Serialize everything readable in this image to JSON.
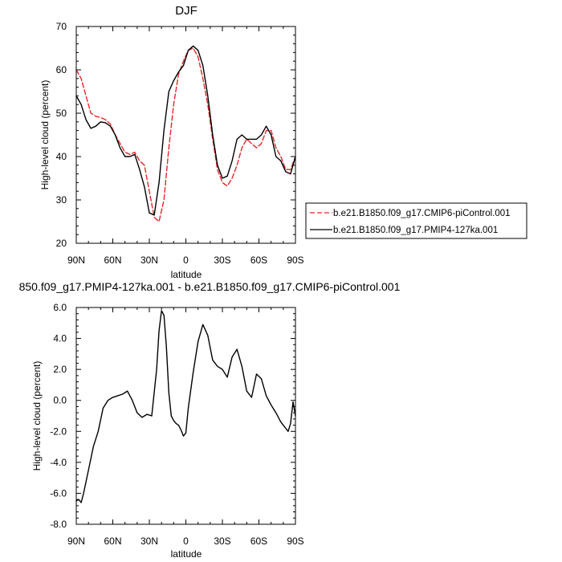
{
  "chart_data": [
    {
      "type": "line",
      "title": "DJF",
      "xlabel": "latitude",
      "ylabel": "High-level cloud (percent)",
      "xlim": [
        90,
        -90
      ],
      "ylim": [
        20,
        70
      ],
      "x_ticks": [
        90,
        60,
        30,
        0,
        -30,
        -60,
        -90
      ],
      "x_tick_labels": [
        "90N",
        "60N",
        "30N",
        "0",
        "30S",
        "60S",
        "90S"
      ],
      "y_ticks": [
        20,
        30,
        40,
        50,
        60,
        70
      ],
      "y_tick_labels": [
        "20",
        "30",
        "40",
        "50",
        "60",
        "70"
      ],
      "legend_position": "right",
      "series": [
        {
          "name": "b.e21.B1850.f09_g17.CMIP6-piControl.001",
          "color": "#e8262a",
          "dash": true,
          "x": [
            90,
            86,
            82,
            78,
            74,
            70,
            66,
            62,
            58,
            54,
            50,
            46,
            42,
            38,
            34,
            30,
            26,
            22,
            18,
            14,
            10,
            6,
            2,
            -2,
            -6,
            -10,
            -14,
            -18,
            -22,
            -26,
            -30,
            -34,
            -38,
            -42,
            -46,
            -50,
            -54,
            -58,
            -62,
            -66,
            -70,
            -74,
            -78,
            -82,
            -86,
            -90
          ],
          "y": [
            60,
            58,
            54,
            50,
            49.3,
            49,
            48.5,
            47.5,
            45,
            43,
            41,
            40.5,
            41,
            39,
            38,
            32,
            26,
            25,
            30,
            42,
            52,
            59,
            62,
            64.5,
            65,
            63,
            58,
            52,
            44,
            37,
            34,
            33.2,
            35,
            38,
            42,
            44,
            43,
            42,
            43,
            46,
            46,
            42,
            40,
            37,
            37,
            40
          ]
        },
        {
          "name": "b.e21.B1850.f09_g17.PMIP4-127ka.001",
          "color": "#000000",
          "dash": false,
          "x": [
            90,
            86,
            82,
            78,
            74,
            70,
            66,
            62,
            58,
            54,
            50,
            46,
            42,
            38,
            34,
            30,
            26,
            22,
            18,
            14,
            10,
            6,
            2,
            -2,
            -6,
            -10,
            -14,
            -18,
            -22,
            -26,
            -30,
            -34,
            -38,
            -42,
            -46,
            -50,
            -54,
            -58,
            -62,
            -66,
            -70,
            -74,
            -78,
            -82,
            -86,
            -90
          ],
          "y": [
            54,
            52,
            48.5,
            46.5,
            47,
            48,
            47.8,
            47,
            45,
            42,
            40,
            40,
            40.5,
            37,
            33,
            27,
            26.5,
            34,
            46,
            55,
            57.5,
            59.5,
            61,
            64.5,
            65.5,
            64.5,
            61,
            54,
            45,
            38,
            35,
            35.5,
            39,
            44,
            45,
            44,
            44,
            44,
            45,
            47,
            45,
            40,
            39,
            36.5,
            36,
            40
          ]
        }
      ]
    },
    {
      "type": "line",
      "title": "850.f09_g17.PMIP4-127ka.001 - b.e21.B1850.f09_g17.CMIP6-piControl.001",
      "xlabel": "latitude",
      "ylabel": "High-level cloud (percent)",
      "xlim": [
        90,
        -90
      ],
      "ylim": [
        -8,
        6
      ],
      "x_ticks": [
        90,
        60,
        30,
        0,
        -30,
        -60,
        -90
      ],
      "x_tick_labels": [
        "90N",
        "60N",
        "30N",
        "0",
        "30S",
        "60S",
        "90S"
      ],
      "y_ticks": [
        -8,
        -6,
        -4,
        -2,
        0,
        2,
        4,
        6
      ],
      "y_tick_labels": [
        "-8.0",
        "-6.0",
        "-4.0",
        "-2.0",
        "0.0",
        "2.0",
        "4.0",
        "6.0"
      ],
      "series": [
        {
          "color": "#000000",
          "dash": false,
          "x": [
            90,
            88,
            86,
            84,
            80,
            76,
            72,
            68,
            64,
            60,
            56,
            52,
            48,
            44,
            40,
            36,
            32,
            28,
            24,
            22,
            20,
            18,
            16,
            14,
            12,
            10,
            8,
            6,
            4,
            2,
            0,
            -2,
            -6,
            -10,
            -14,
            -18,
            -22,
            -26,
            -30,
            -34,
            -38,
            -42,
            -46,
            -50,
            -54,
            -58,
            -62,
            -66,
            -70,
            -74,
            -78,
            -82,
            -84,
            -86,
            -88,
            -90
          ],
          "y": [
            -6.5,
            -6.4,
            -6.6,
            -6.0,
            -4.5,
            -3.0,
            -2.0,
            -0.5,
            0.0,
            0.2,
            0.3,
            0.4,
            0.6,
            0.0,
            -0.8,
            -1.1,
            -0.9,
            -1.0,
            2.0,
            4.5,
            5.8,
            5.5,
            3.5,
            0.5,
            -1.0,
            -1.3,
            -1.5,
            -1.6,
            -1.9,
            -2.3,
            -2.1,
            -0.5,
            1.8,
            3.8,
            4.9,
            4.2,
            2.6,
            2.2,
            2.0,
            1.5,
            2.8,
            3.3,
            2.2,
            0.6,
            0.2,
            1.7,
            1.4,
            0.3,
            -0.3,
            -0.8,
            -1.4,
            -1.8,
            -2.0,
            -1.5,
            -0.1,
            -1.0
          ]
        }
      ]
    }
  ]
}
